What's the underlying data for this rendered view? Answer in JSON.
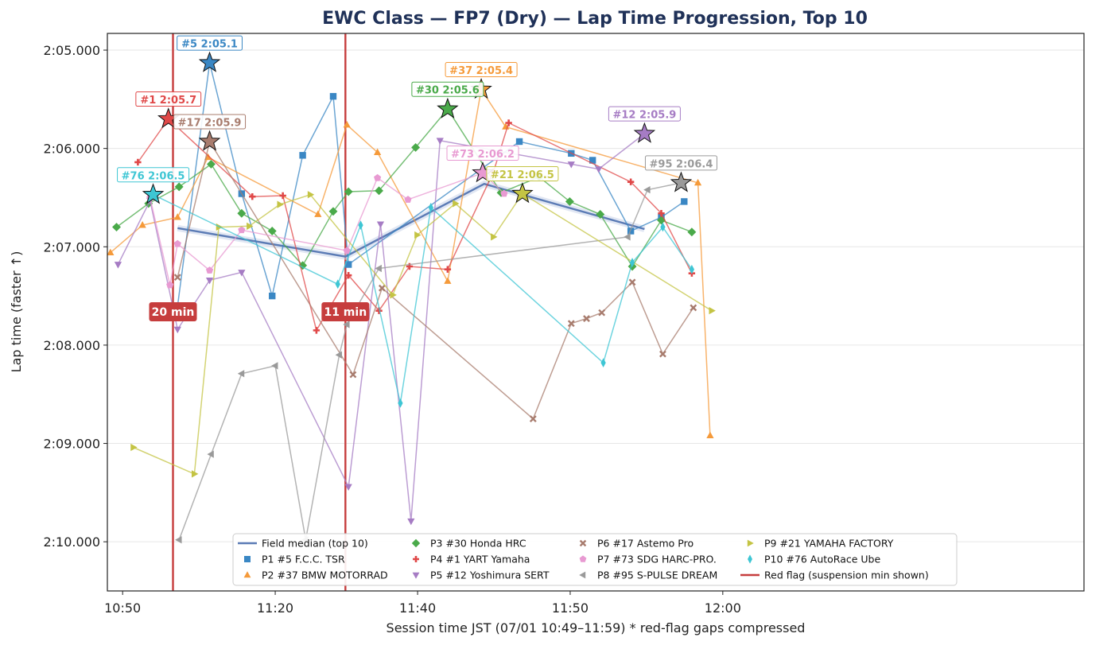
{
  "chart_data": {
    "type": "line",
    "title": "EWC Class — FP7 (Dry) — Lap Time Progression, Top 10",
    "xlabel": "Session time JST (07/01 10:49–11:59)   * red-flag gaps compressed",
    "ylabel": "Lap time (faster ↑)",
    "x_unit": "compressed session minutes after 10:50",
    "xlim": [
      -1,
      63
    ],
    "ylim": [
      130.5,
      124.83
    ],
    "y_inverted": true,
    "x_ticks": [
      {
        "value": 0,
        "label": "10:50"
      },
      {
        "value": 10,
        "label": "11:20"
      },
      {
        "value": 19.33,
        "label": "11:40"
      },
      {
        "value": 29.33,
        "label": "11:50"
      },
      {
        "value": 39.33,
        "label": "12:00"
      }
    ],
    "y_ticks": [
      {
        "value": 125,
        "label": "2:05.000"
      },
      {
        "value": 126,
        "label": "2:06.000"
      },
      {
        "value": 127,
        "label": "2:07.000"
      },
      {
        "value": 128,
        "label": "2:08.000"
      },
      {
        "value": 129,
        "label": "2:09.000"
      },
      {
        "value": 130,
        "label": "2:10.000"
      }
    ],
    "grid": true,
    "legend_position": "bottom-center",
    "median": {
      "name": "Field median (top 10)",
      "color": "#5b7bb5",
      "x": [
        3.6,
        14.6,
        23.7,
        34.2
      ],
      "y": [
        126.81,
        127.1,
        126.36,
        126.82
      ]
    },
    "red_flags": {
      "name": "Red flag (suspension min shown)",
      "color": "#c63d3d",
      "flags": [
        {
          "x": 3.3,
          "label": "20 min"
        },
        {
          "x": 14.6,
          "label": "11 min"
        }
      ]
    },
    "series": [
      {
        "name": "P1 #5 F.C.C. TSR",
        "color": "#3a87c4",
        "marker": "square",
        "best_label": "#5 2:05.1",
        "best": [
          5.7,
          125.13
        ],
        "x": [
          3.6,
          5.7,
          7.8,
          9.8,
          11.8,
          13.8,
          14.8,
          26.0,
          29.4,
          30.8,
          33.3,
          35.3,
          36.8
        ],
        "y": [
          127.6,
          125.13,
          126.46,
          127.5,
          126.07,
          125.47,
          127.18,
          125.93,
          126.05,
          126.12,
          126.84,
          126.7,
          126.54
        ]
      },
      {
        "name": "P2 #37 BMW MOTORRAD",
        "color": "#f59a3a",
        "marker": "triangle-up",
        "best_label": "#37 2:05.4",
        "best": [
          23.5,
          125.4
        ],
        "x": [
          -0.8,
          1.3,
          3.6,
          5.6,
          12.8,
          14.7,
          16.7,
          21.3,
          23.5,
          25.1,
          37.7,
          38.5
        ],
        "y": [
          127.06,
          126.78,
          126.7,
          126.09,
          126.67,
          125.76,
          126.04,
          127.35,
          125.4,
          125.78,
          126.35,
          128.92
        ]
      },
      {
        "name": "P3 #30 Honda HRC",
        "color": "#4aaa4a",
        "marker": "diamond",
        "best_label": "#30 2:05.6",
        "best": [
          21.3,
          125.6
        ],
        "x": [
          -0.4,
          1.7,
          3.7,
          5.8,
          7.8,
          9.8,
          11.8,
          13.8,
          14.8,
          16.8,
          19.2,
          21.3,
          24.8,
          27.3,
          29.3,
          31.3,
          33.4,
          35.3,
          37.3
        ],
        "y": [
          126.8,
          126.56,
          126.39,
          126.16,
          126.66,
          126.84,
          127.19,
          126.64,
          126.44,
          126.43,
          125.99,
          125.6,
          126.45,
          126.29,
          126.54,
          126.67,
          127.2,
          126.73,
          126.85
        ]
      },
      {
        "name": "P4 #1 YART Yamaha",
        "color": "#e04848",
        "marker": "plus",
        "best_label": "#1 2:05.7",
        "best": [
          3.0,
          125.7
        ],
        "x": [
          1.0,
          3.0,
          8.5,
          10.5,
          12.7,
          14.8,
          16.8,
          18.8,
          21.3,
          24.3,
          25.3,
          33.3,
          35.3,
          37.3
        ],
        "y": [
          126.14,
          125.7,
          126.49,
          126.48,
          127.85,
          127.29,
          127.65,
          127.2,
          127.23,
          126.24,
          125.74,
          126.34,
          126.66,
          127.27
        ]
      },
      {
        "name": "P5 #12 Yoshimura SERT",
        "color": "#a67cc4",
        "marker": "triangle-down",
        "best_label": "#12 2:05.9",
        "best": [
          34.2,
          125.85
        ],
        "x": [
          -0.3,
          1.8,
          3.6,
          5.7,
          7.8,
          14.8,
          16.9,
          18.9,
          20.8,
          29.4,
          31.2,
          34.2
        ],
        "y": [
          127.18,
          126.53,
          127.84,
          127.34,
          127.26,
          129.44,
          126.77,
          129.79,
          125.92,
          126.16,
          126.21,
          125.85
        ]
      },
      {
        "name": "P6 #17 Astemo Pro",
        "color": "#a87c6e",
        "marker": "x",
        "best_label": "#17 2:05.9",
        "best": [
          5.7,
          125.93
        ],
        "x": [
          3.6,
          5.7,
          15.1,
          17.0,
          26.9,
          29.4,
          30.4,
          31.4,
          33.4,
          35.4,
          37.4
        ],
        "y": [
          127.31,
          125.93,
          128.3,
          127.42,
          128.75,
          127.78,
          127.73,
          127.67,
          127.36,
          128.09,
          127.62
        ]
      },
      {
        "name": "P7 #73 SDG HARC-PRO.",
        "color": "#e89ad2",
        "marker": "pentagon",
        "best_label": "#73 2:06.2",
        "best": [
          23.6,
          126.25
        ],
        "x": [
          1.8,
          3.1,
          3.6,
          5.7,
          7.8,
          14.7,
          16.7,
          18.7,
          23.6,
          25.0
        ],
        "y": [
          126.5,
          127.39,
          126.97,
          127.24,
          126.83,
          127.04,
          126.3,
          126.52,
          126.25,
          126.46
        ]
      },
      {
        "name": "P8 #95 S-PULSE DREAM",
        "color": "#9a9a9a",
        "marker": "triangle-left",
        "best_label": "#95 2:06.4",
        "best": [
          36.6,
          126.35
        ],
        "x": [
          3.7,
          5.8,
          7.8,
          10.0,
          12.0,
          14.2,
          14.7,
          16.8,
          33.1,
          34.4,
          36.6
        ],
        "y": [
          129.98,
          129.11,
          128.29,
          128.21,
          129.98,
          128.1,
          127.79,
          127.22,
          126.9,
          126.42,
          126.35
        ]
      },
      {
        "name": "P9 #21 YAMAHA FACTORY",
        "color": "#c4c444",
        "marker": "triangle-right",
        "best_label": "#21 2:06.5",
        "best": [
          26.2,
          126.46
        ],
        "x": [
          0.7,
          4.7,
          6.3,
          8.3,
          10.3,
          12.3,
          17.7,
          19.3,
          21.8,
          24.3,
          26.2,
          38.6
        ],
        "y": [
          129.04,
          129.31,
          126.8,
          126.79,
          126.57,
          126.47,
          127.49,
          126.88,
          126.56,
          126.9,
          126.46,
          127.65
        ]
      },
      {
        "name": "P10 #76 AutoRace Ube",
        "color": "#3ec6d4",
        "marker": "thin-diamond",
        "best_label": "#76 2:06.5",
        "best": [
          2.0,
          126.47
        ],
        "x": [
          2.0,
          14.1,
          15.6,
          18.2,
          20.2,
          31.5,
          33.4,
          35.4,
          37.3
        ],
        "y": [
          126.47,
          127.38,
          126.78,
          128.59,
          126.6,
          128.18,
          127.16,
          126.8,
          127.23
        ]
      }
    ]
  }
}
